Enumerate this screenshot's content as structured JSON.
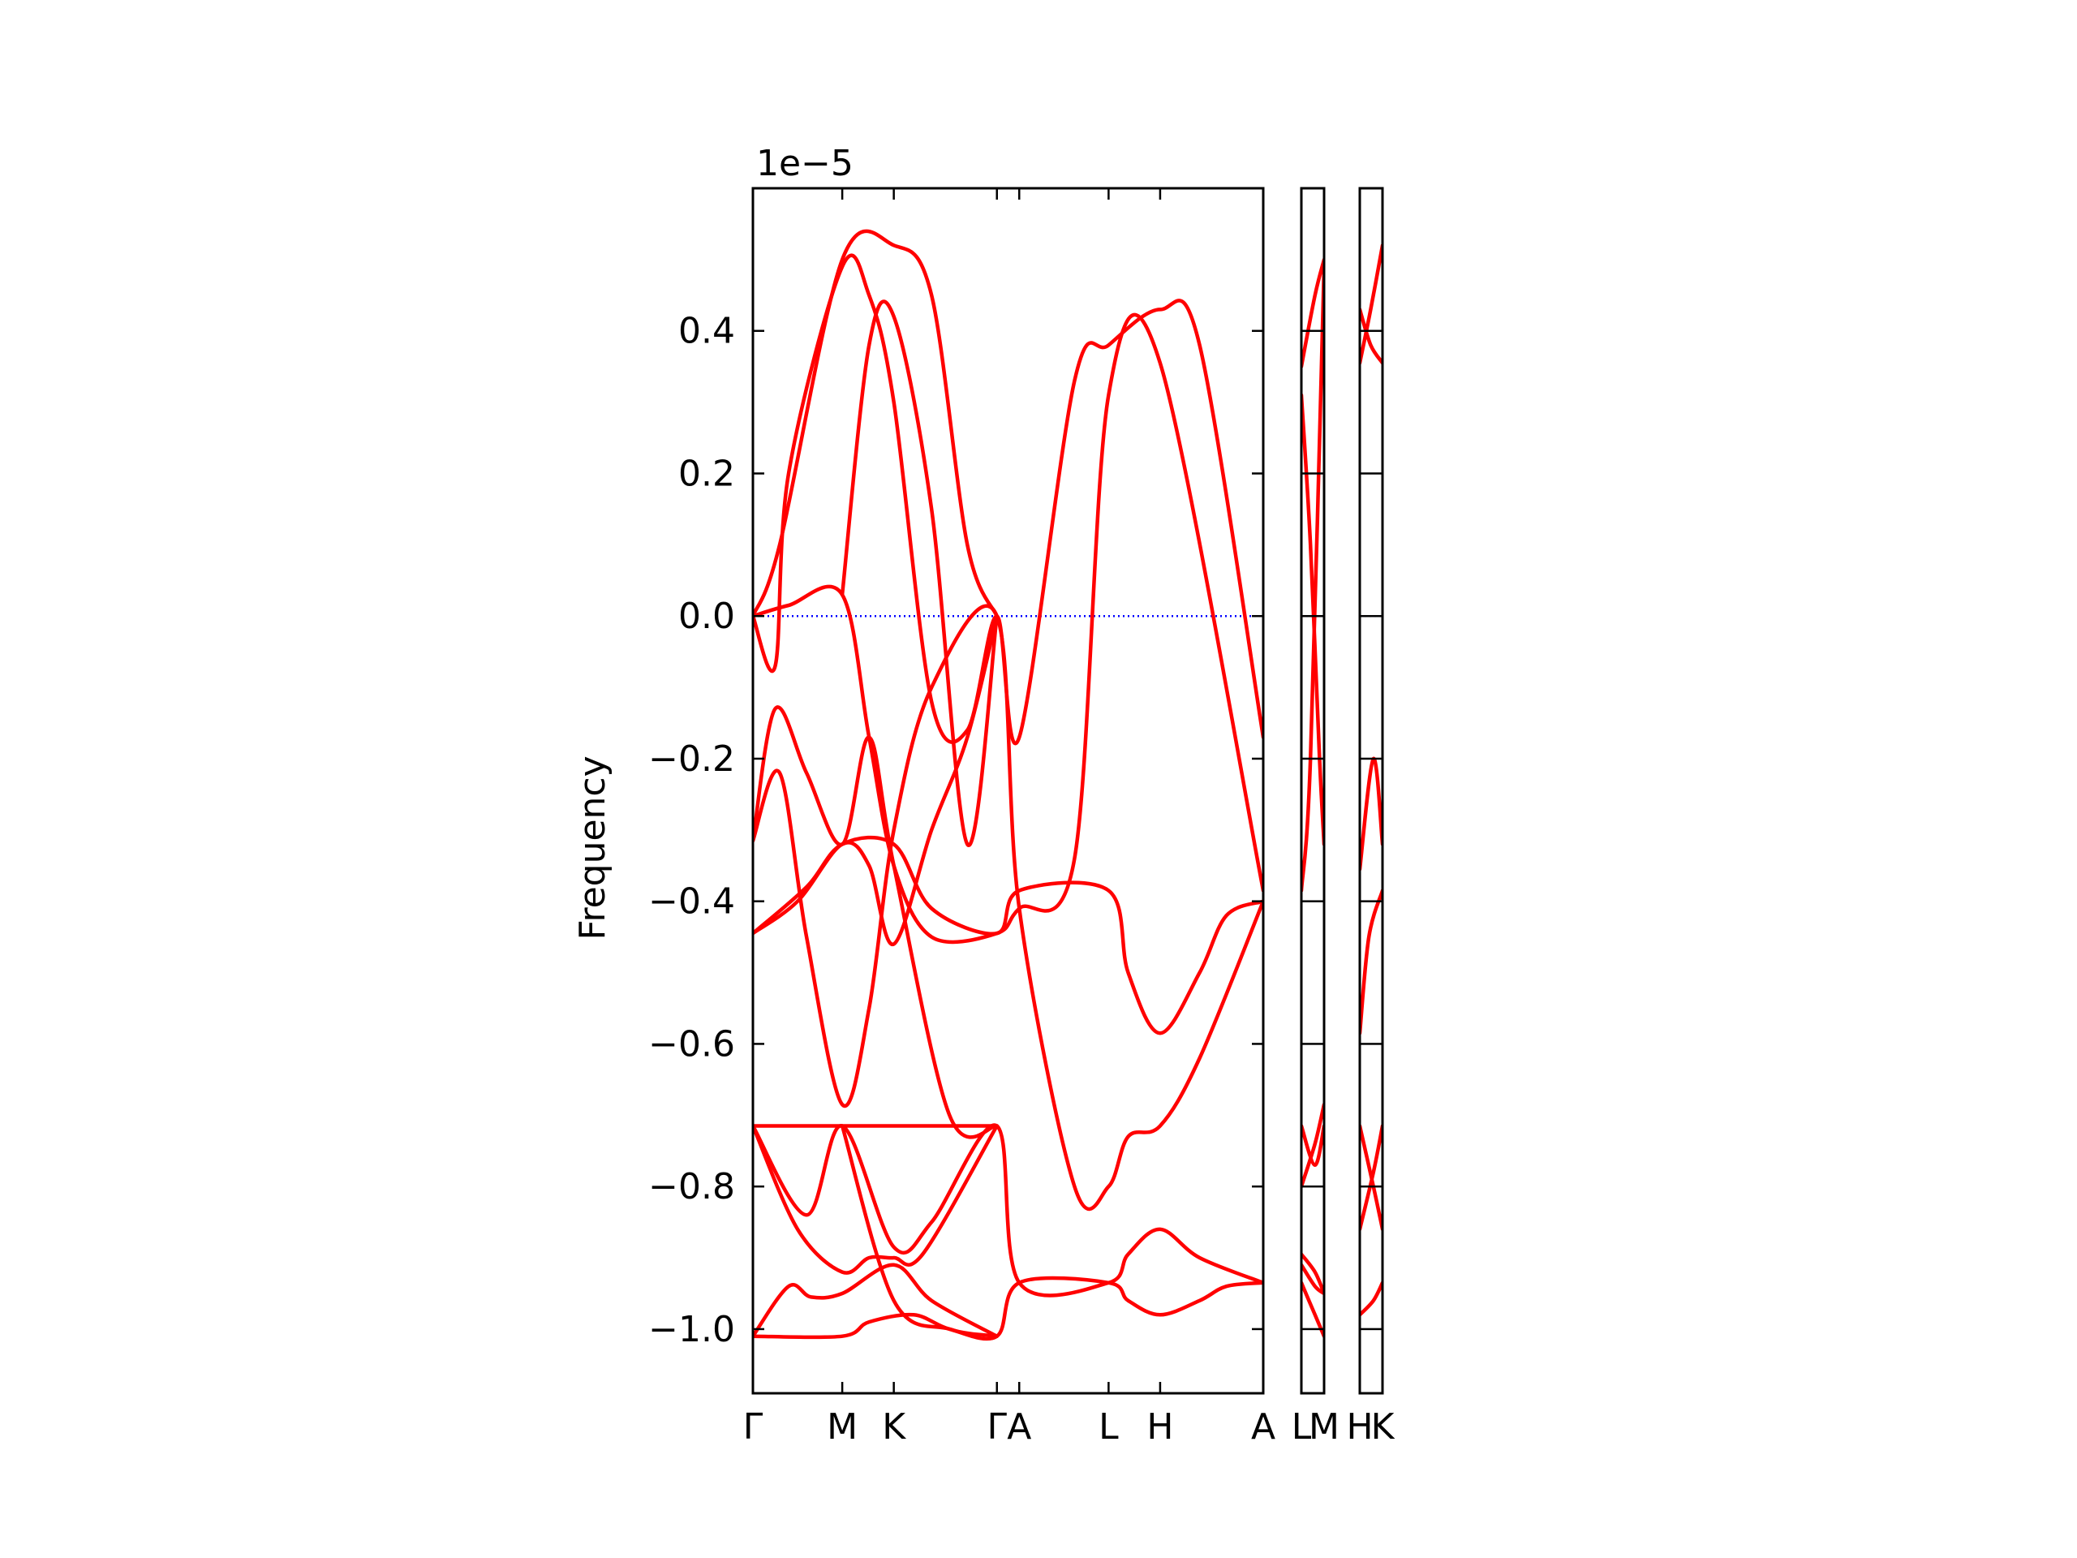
{
  "chart_data": {
    "type": "line",
    "title": "",
    "ylabel": "Frequency",
    "xlabel": "",
    "y_exponent_label": "1e−5",
    "y_scale_factor": 1e-05,
    "ylim": [
      -1.09,
      0.6
    ],
    "yticks": [
      {
        "value": 0.4,
        "label": "0.4"
      },
      {
        "value": 0.2,
        "label": "0.2"
      },
      {
        "value": 0.0,
        "label": "0.0"
      },
      {
        "value": -0.2,
        "label": "−0.2"
      },
      {
        "value": -0.4,
        "label": "−0.4"
      },
      {
        "value": -0.6,
        "label": "−0.6"
      },
      {
        "value": -0.8,
        "label": "−0.8"
      },
      {
        "value": -1.0,
        "label": "−1.0"
      }
    ],
    "kpoints": [
      {
        "label": "Γ",
        "x": 0.0
      },
      {
        "label": "M",
        "x": 1.0
      },
      {
        "label": "K",
        "x": 1.577
      },
      {
        "label": "Γ",
        "x": 2.731
      },
      {
        "label": "A",
        "x": 2.981
      },
      {
        "label": "L",
        "x": 3.981
      },
      {
        "label": "H",
        "x": 4.558
      },
      {
        "label": "A",
        "x": 5.712
      },
      {
        "label": "L",
        "x": 0.0
      },
      {
        "label": "M",
        "x": 0.25
      },
      {
        "label": "H",
        "x": 0.0
      },
      {
        "label": "K",
        "x": 0.25
      }
    ],
    "reference_line": {
      "y": 0.0,
      "color": "#0000ff",
      "style": "dotted"
    },
    "band_color": "#ff0000",
    "panels": [
      {
        "xlim": [
          0,
          5.712
        ],
        "kpoint_indices": [
          0,
          1,
          2,
          3,
          4,
          5,
          6,
          7
        ],
        "bands": [
          [
            [
              0,
              -1.01
            ],
            [
              1,
              -1.01
            ],
            [
              1.3,
              -0.99
            ],
            [
              1.8,
              -0.98
            ],
            [
              2.2,
              -1.0
            ],
            [
              2.731,
              -1.01
            ],
            [
              2.981,
              -0.935
            ],
            [
              3.981,
              -0.935
            ],
            [
              4.2,
              -0.96
            ],
            [
              4.558,
              -0.98
            ],
            [
              5.0,
              -0.96
            ],
            [
              5.3,
              -0.94
            ],
            [
              5.712,
              -0.935
            ]
          ],
          [
            [
              0,
              -1.01
            ],
            [
              0.4,
              -0.94
            ],
            [
              0.65,
              -0.955
            ],
            [
              1,
              -0.95
            ],
            [
              1.577,
              -0.91
            ],
            [
              2.0,
              -0.96
            ],
            [
              2.731,
              -1.01
            ]
          ],
          [
            [
              0,
              -0.715
            ],
            [
              0.6,
              -0.84
            ],
            [
              1,
              -0.715
            ],
            [
              1.577,
              -0.885
            ],
            [
              2.0,
              -0.85
            ],
            [
              2.731,
              -0.715
            ],
            [
              2.981,
              -0.935
            ],
            [
              3.981,
              -0.935
            ],
            [
              4.2,
              -0.895
            ],
            [
              4.558,
              -0.86
            ],
            [
              5.0,
              -0.9
            ],
            [
              5.712,
              -0.935
            ]
          ],
          [
            [
              0,
              -0.715
            ],
            [
              0.5,
              -0.86
            ],
            [
              1,
              -0.92
            ],
            [
              1.3,
              -0.9
            ],
            [
              1.577,
              -0.9
            ],
            [
              1.9,
              -0.895
            ],
            [
              2.731,
              -0.715
            ]
          ],
          [
            [
              0,
              -0.715
            ],
            [
              1,
              -0.715
            ],
            [
              1.577,
              -0.715
            ],
            [
              2.731,
              -0.715
            ]
          ],
          [
            [
              1,
              -0.715
            ],
            [
              1.577,
              -0.96
            ],
            [
              2.2,
              -1.0
            ],
            [
              2.731,
              -1.01
            ]
          ],
          [
            [
              0,
              -0.445
            ],
            [
              0.6,
              -0.38
            ],
            [
              1,
              -0.32
            ],
            [
              1.577,
              -0.32
            ],
            [
              2.0,
              -0.41
            ],
            [
              2.731,
              -0.445
            ],
            [
              2.981,
              -0.385
            ],
            [
              3.981,
              -0.385
            ],
            [
              4.2,
              -0.5
            ],
            [
              4.558,
              -0.585
            ],
            [
              5.0,
              -0.5
            ],
            [
              5.3,
              -0.42
            ],
            [
              5.712,
              -0.4
            ]
          ],
          [
            [
              0,
              -0.445
            ],
            [
              0.5,
              -0.4
            ],
            [
              1,
              -0.32
            ],
            [
              1.3,
              -0.35
            ],
            [
              1.577,
              -0.46
            ],
            [
              2.0,
              -0.3
            ],
            [
              2.4,
              -0.17
            ],
            [
              2.731,
              0.0
            ]
          ],
          [
            [
              0,
              -0.315
            ],
            [
              0.25,
              -0.13
            ],
            [
              0.6,
              -0.22
            ],
            [
              1,
              -0.32
            ],
            [
              1.3,
              -0.17
            ],
            [
              1.577,
              -0.35
            ],
            [
              2.2,
              -0.7
            ],
            [
              2.731,
              -0.715
            ]
          ],
          [
            [
              0,
              -0.315
            ],
            [
              0.3,
              -0.22
            ],
            [
              0.6,
              -0.45
            ],
            [
              1,
              -0.685
            ],
            [
              1.3,
              -0.55
            ],
            [
              1.577,
              -0.3
            ],
            [
              2.0,
              -0.1
            ],
            [
              2.731,
              0.0
            ],
            [
              2.981,
              -0.41
            ],
            [
              3.6,
              -0.8
            ],
            [
              3.981,
              -0.8
            ],
            [
              4.2,
              -0.73
            ],
            [
              4.558,
              -0.715
            ],
            [
              5.0,
              -0.62
            ],
            [
              5.712,
              -0.4
            ]
          ],
          [
            [
              0,
              0.0
            ],
            [
              0.4,
              0.015
            ],
            [
              1,
              0.03
            ],
            [
              1.3,
              -0.17
            ],
            [
              1.577,
              -0.35
            ],
            [
              2.0,
              -0.45
            ],
            [
              2.731,
              -0.445
            ],
            [
              2.981,
              -0.41
            ],
            [
              3.6,
              -0.34
            ],
            [
              3.981,
              0.31
            ],
            [
              4.558,
              0.355
            ],
            [
              5.712,
              -0.385
            ]
          ],
          [
            [
              0,
              0.0
            ],
            [
              0.25,
              -0.07
            ],
            [
              0.4,
              0.2
            ],
            [
              1,
              0.49
            ],
            [
              1.3,
              0.45
            ],
            [
              1.577,
              0.3
            ],
            [
              2.0,
              -0.12
            ],
            [
              2.4,
              -0.16
            ],
            [
              2.731,
              0.0
            ],
            [
              2.981,
              -0.17
            ],
            [
              3.6,
              0.33
            ],
            [
              3.981,
              0.38
            ],
            [
              4.558,
              0.43
            ],
            [
              5.0,
              0.38
            ],
            [
              5.712,
              -0.17
            ]
          ],
          [
            [
              0,
              0.0
            ],
            [
              0.3,
              0.1
            ],
            [
              1,
              0.5
            ],
            [
              1.577,
              0.52
            ],
            [
              2.0,
              0.45
            ],
            [
              2.4,
              0.1
            ],
            [
              2.731,
              0.0
            ]
          ],
          [
            [
              1,
              0.03
            ],
            [
              1.3,
              0.38
            ],
            [
              1.577,
              0.42
            ],
            [
              2.0,
              0.15
            ],
            [
              2.4,
              -0.32
            ],
            [
              2.731,
              0.0
            ]
          ]
        ]
      },
      {
        "xlim": [
          0,
          0.25
        ],
        "kpoint_indices": [
          8,
          9
        ],
        "bands": [
          [
            [
              0,
              0.31
            ],
            [
              0.1,
              0.1
            ],
            [
              0.2,
              -0.2
            ],
            [
              0.25,
              -0.32
            ]
          ],
          [
            [
              0,
              0.35
            ],
            [
              0.15,
              0.45
            ],
            [
              0.25,
              0.5
            ]
          ],
          [
            [
              0,
              -0.385
            ],
            [
              0.1,
              -0.2
            ],
            [
              0.25,
              0.49
            ]
          ],
          [
            [
              0,
              -0.8
            ],
            [
              0.15,
              -0.74
            ],
            [
              0.25,
              -0.685
            ]
          ],
          [
            [
              0,
              -0.895
            ],
            [
              0.15,
              -0.92
            ],
            [
              0.25,
              -0.95
            ]
          ],
          [
            [
              0,
              -0.935
            ],
            [
              0.15,
              -0.98
            ],
            [
              0.25,
              -1.01
            ]
          ],
          [
            [
              0,
              -0.91
            ],
            [
              0.15,
              -0.94
            ],
            [
              0.25,
              -0.95
            ]
          ],
          [
            [
              0,
              -0.715
            ],
            [
              0.15,
              -0.77
            ],
            [
              0.25,
              -0.715
            ]
          ]
        ]
      },
      {
        "xlim": [
          0,
          0.25
        ],
        "kpoint_indices": [
          10,
          11
        ],
        "bands": [
          [
            [
              0,
              0.43
            ],
            [
              0.12,
              0.38
            ],
            [
              0.25,
              0.355
            ]
          ],
          [
            [
              0,
              0.355
            ],
            [
              0.12,
              0.43
            ],
            [
              0.25,
              0.52
            ]
          ],
          [
            [
              0,
              -0.585
            ],
            [
              0.1,
              -0.45
            ],
            [
              0.25,
              -0.385
            ]
          ],
          [
            [
              0,
              -0.715
            ],
            [
              0.15,
              -0.8
            ],
            [
              0.25,
              -0.86
            ]
          ],
          [
            [
              0,
              -0.86
            ],
            [
              0.15,
              -0.78
            ],
            [
              0.25,
              -0.715
            ]
          ],
          [
            [
              0,
              -0.98
            ],
            [
              0.15,
              -0.96
            ],
            [
              0.25,
              -0.935
            ]
          ],
          [
            [
              0,
              -0.355
            ],
            [
              0.15,
              -0.2
            ],
            [
              0.25,
              -0.32
            ]
          ]
        ]
      }
    ]
  }
}
